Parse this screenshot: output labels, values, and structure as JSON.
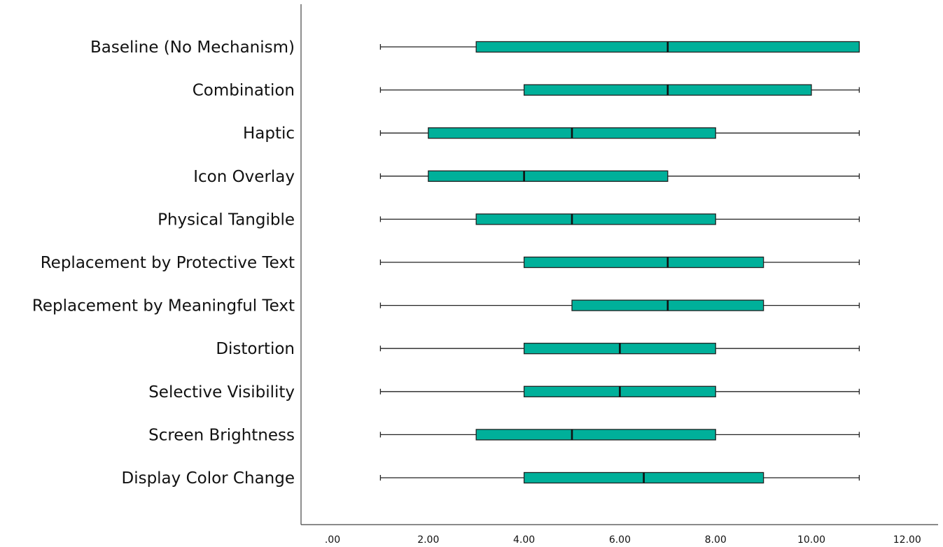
{
  "chart_data": {
    "type": "boxplot",
    "orientation": "horizontal",
    "title": "",
    "xlabel": "",
    "ylabel": "",
    "xlim": [
      0,
      12
    ],
    "x_ticks": [
      ".00",
      "2.00",
      "4.00",
      "6.00",
      "8.00",
      "10.00",
      "12.00"
    ],
    "x_tick_values": [
      0,
      2,
      4,
      6,
      8,
      10,
      12
    ],
    "grid": false,
    "legend": "none",
    "box_color": "#00b09a",
    "categories": [
      "Baseline (No Mechanism)",
      "Combination",
      "Haptic",
      "Icon Overlay",
      "Physical Tangible",
      "Replacement by Protective Text",
      "Replacement by Meaningful Text",
      "Distortion",
      "Selective Visibility",
      "Screen Brightness",
      "Display Color Change"
    ],
    "boxes": [
      {
        "min": 1,
        "q1": 3,
        "median": 7,
        "q3": 11,
        "max": 11
      },
      {
        "min": 1,
        "q1": 4,
        "median": 7,
        "q3": 10,
        "max": 11
      },
      {
        "min": 1,
        "q1": 2,
        "median": 5,
        "q3": 8,
        "max": 11
      },
      {
        "min": 1,
        "q1": 2,
        "median": 4,
        "q3": 7,
        "max": 11
      },
      {
        "min": 1,
        "q1": 3,
        "median": 5,
        "q3": 8,
        "max": 11
      },
      {
        "min": 1,
        "q1": 4,
        "median": 7,
        "q3": 9,
        "max": 11
      },
      {
        "min": 1,
        "q1": 5,
        "median": 7,
        "q3": 9,
        "max": 11
      },
      {
        "min": 1,
        "q1": 4,
        "median": 6,
        "q3": 8,
        "max": 11
      },
      {
        "min": 1,
        "q1": 4,
        "median": 6,
        "q3": 8,
        "max": 11
      },
      {
        "min": 1,
        "q1": 3,
        "median": 5,
        "q3": 8,
        "max": 11
      },
      {
        "min": 1,
        "q1": 4,
        "median": 6.5,
        "q3": 9,
        "max": 11
      }
    ]
  }
}
